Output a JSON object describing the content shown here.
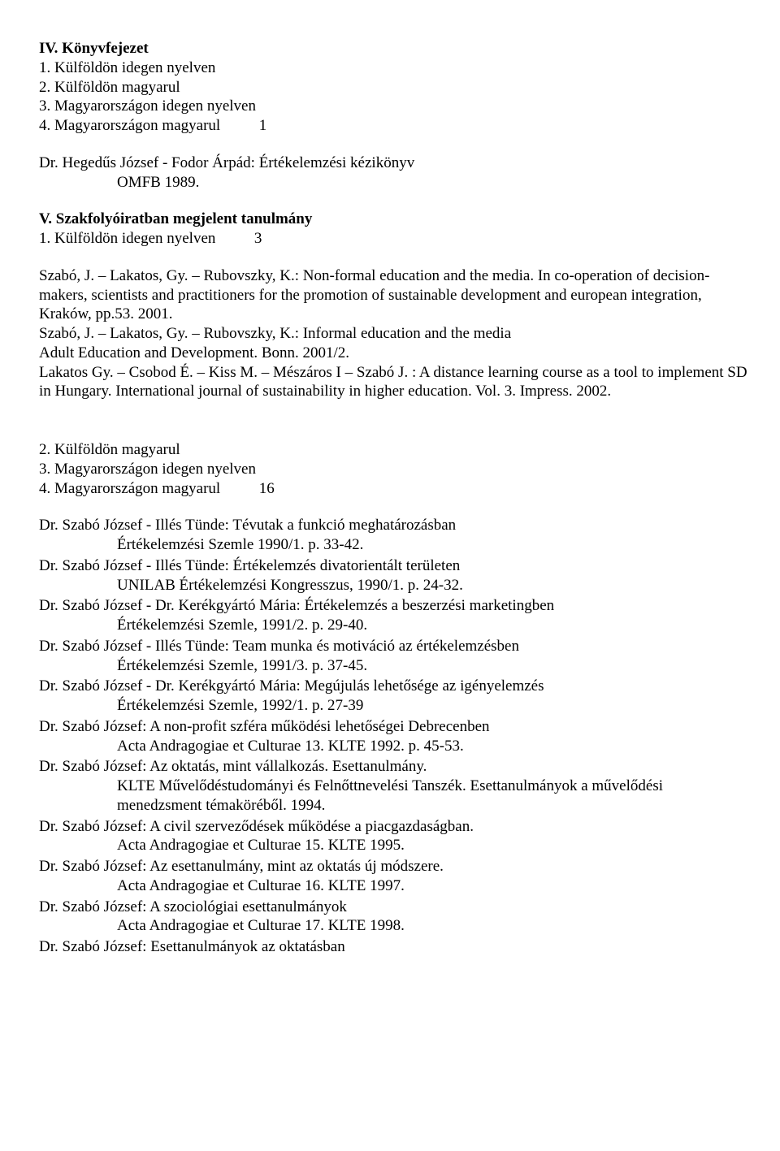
{
  "sectionIV": {
    "heading": "IV. Könyvfejezet",
    "items": [
      {
        "text": "1. Külföldön idegen nyelven"
      },
      {
        "text": "2. Külföldön magyarul"
      },
      {
        "text": "3. Magyarországon idegen nyelven"
      },
      {
        "text": "4. Magyarországon magyarul",
        "count": "1"
      }
    ],
    "ref": {
      "line1": "Dr. Hegedűs József - Fodor Árpád: Értékelemzési kézikönyv",
      "line2": "OMFB 1989."
    }
  },
  "sectionV": {
    "heading": "V. Szakfolyóiratban megjelent tanulmány",
    "item1": {
      "text": "1. Külföldön idegen nyelven",
      "count": "3"
    },
    "paragraph": "Szabó, J. – Lakatos, Gy. – Rubovszky, K.: Non-formal education and the media. In co-operation of decision-makers, scientists and practitioners for the promotion of sustainable development and european integration, Kraków, pp.53. 2001.\nSzabó, J. – Lakatos, Gy. – Rubovszky, K.: Informal education and the media\nAdult Education and Development. Bonn. 2001/2.\nLakatos Gy. – Csobod É. – Kiss M. – Mészáros I – Szabó J. : A distance learning course as a tool to implement SD in Hungary. International journal of sustainability in higher education. Vol. 3. Impress. 2002.",
    "items2": [
      {
        "text": "2. Külföldön magyarul"
      },
      {
        "text": "3. Magyarországon idegen nyelven"
      },
      {
        "text": "4. Magyarországon magyarul",
        "count": "16"
      }
    ]
  },
  "refs": [
    {
      "line1": "Dr. Szabó József - Illés Tünde: Tévutak a funkció meghatározásban",
      "line2": "Értékelemzési Szemle 1990/1. p. 33-42."
    },
    {
      "line1": "Dr. Szabó József - Illés Tünde: Értékelemzés divatorientált területen",
      "line2": "UNILAB  Értékelemzési Kongresszus, 1990/1. p. 24-32."
    },
    {
      "line1": "Dr. Szabó József - Dr. Kerékgyártó Mária: Értékelemzés a beszerzési marketingben",
      "line2": "Értékelemzési Szemle, 1991/2. p. 29-40."
    },
    {
      "line1": "Dr. Szabó József - Illés Tünde: Team munka és motiváció az értékelemzésben",
      "line2": "Értékelemzési Szemle, 1991/3. p. 37-45."
    },
    {
      "line1": "Dr. Szabó József - Dr. Kerékgyártó Mária: Megújulás lehetősége az igényelemzés",
      "line2": "Értékelemzési Szemle, 1992/1. p. 27-39"
    },
    {
      "line1": "Dr. Szabó József: A non-profit szféra működési lehetőségei Debrecenben",
      "line2": "Acta Andragogiae et Culturae 13. KLTE 1992. p. 45-53."
    },
    {
      "line1": "Dr. Szabó József: Az oktatás, mint vállalkozás. Esettanulmány.",
      "line2": "KLTE Művelődéstudományi és Felnőttnevelési  Tanszék. Esettanulmányok a művelődési menedzsment témaköréből. 1994."
    },
    {
      "line1": "Dr. Szabó József: A civil szerveződések működése a piacgazdaságban.",
      "line2": "Acta Andragogiae et Culturae 15. KLTE 1995."
    },
    {
      "line1": "Dr. Szabó József: Az esettanulmány, mint az oktatás új módszere.",
      "line2": "Acta Andragogiae et Culturae 16. KLTE 1997."
    },
    {
      "line1": "Dr. Szabó József: A szociológiai esettanulmányok",
      "line2": "Acta Andragogiae et Culturae 17. KLTE 1998."
    },
    {
      "line1": "Dr. Szabó József: Esettanulmányok az oktatásban"
    }
  ]
}
